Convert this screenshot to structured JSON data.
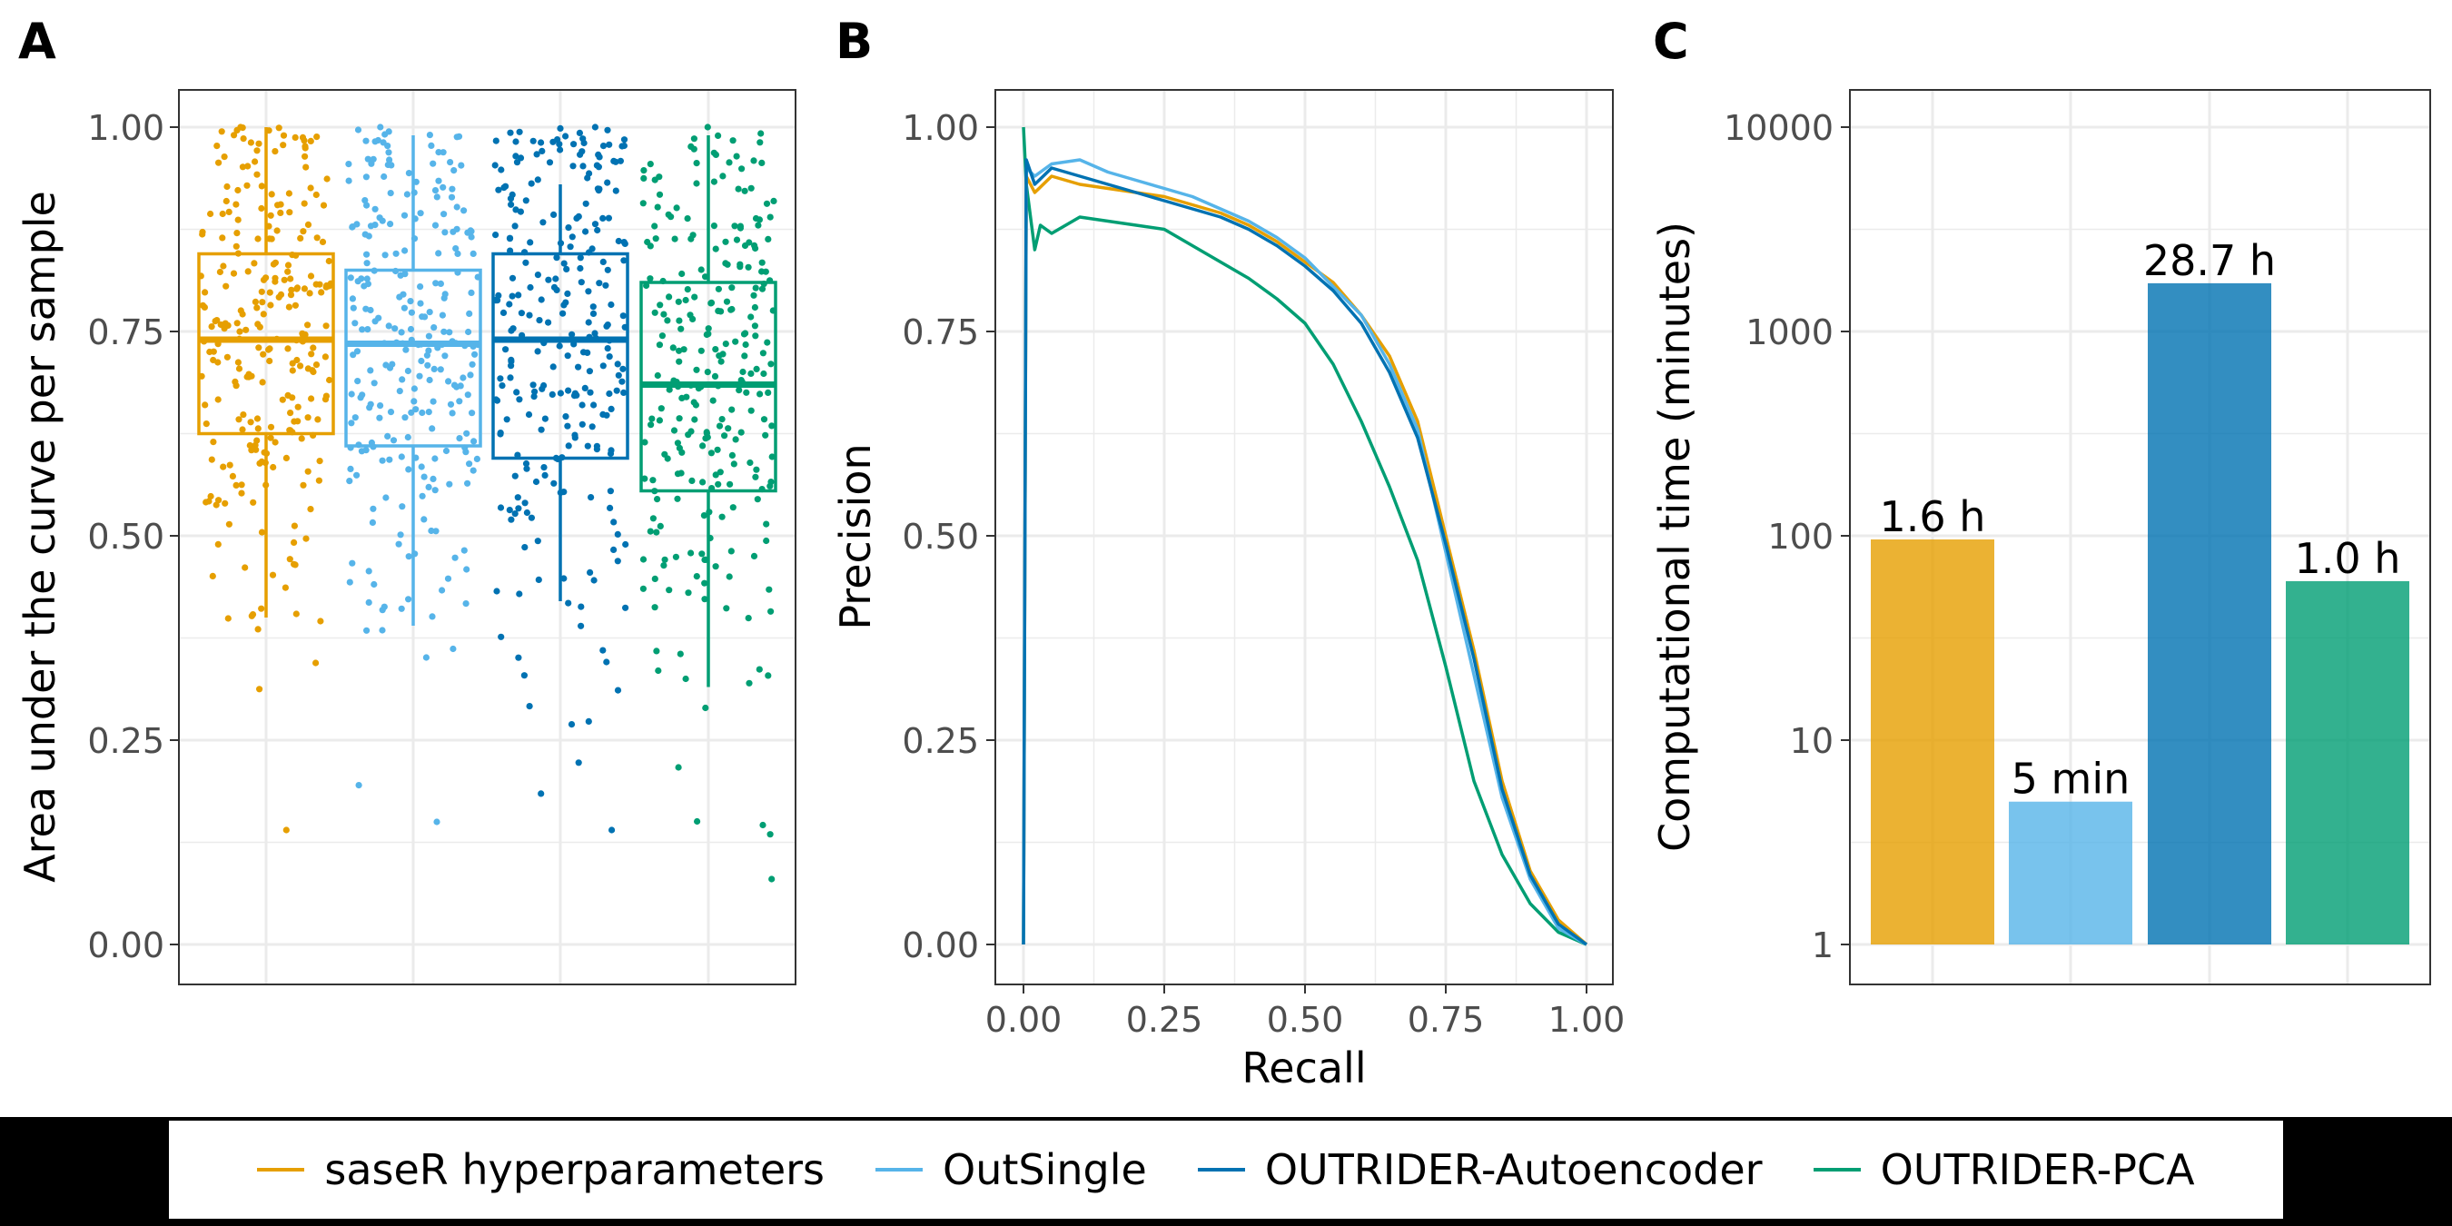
{
  "colors": {
    "saser": "#E69F00",
    "outsingle": "#56B4E9",
    "autoencoder": "#0072B2",
    "pca": "#009E73"
  },
  "legend": {
    "items": [
      {
        "label": "saseR hyperparameters",
        "color": "#E69F00"
      },
      {
        "label": "OutSingle",
        "color": "#56B4E9"
      },
      {
        "label": "OUTRIDER-Autoencoder",
        "color": "#0072B2"
      },
      {
        "label": "OUTRIDER-PCA",
        "color": "#009E73"
      }
    ]
  },
  "chart_data": [
    {
      "panel": "A",
      "type": "box",
      "ylabel": "Area under the curve per sample",
      "xlabel": "",
      "ylim": [
        0,
        1
      ],
      "yticks": [
        "0.00",
        "0.25",
        "0.50",
        "0.75",
        "1.00"
      ],
      "grid": true,
      "series": [
        {
          "name": "saseR hyperparameters",
          "color": "#E69F00",
          "median": 0.74,
          "q1": 0.625,
          "q3": 0.845,
          "whisker_low": 0.4,
          "whisker_high": 1.0,
          "point_min": 0.14,
          "point_max": 1.0
        },
        {
          "name": "OutSingle",
          "color": "#56B4E9",
          "median": 0.735,
          "q1": 0.61,
          "q3": 0.825,
          "whisker_low": 0.39,
          "whisker_high": 0.99,
          "point_min": 0.15,
          "point_max": 1.0
        },
        {
          "name": "OUTRIDER-Autoencoder",
          "color": "#0072B2",
          "median": 0.74,
          "q1": 0.595,
          "q3": 0.845,
          "whisker_low": 0.42,
          "whisker_high": 0.93,
          "point_min": 0.14,
          "point_max": 1.0
        },
        {
          "name": "OUTRIDER-PCA",
          "color": "#009E73",
          "median": 0.685,
          "q1": 0.555,
          "q3": 0.81,
          "whisker_low": 0.315,
          "whisker_high": 0.99,
          "point_min": 0.08,
          "point_max": 1.0
        }
      ]
    },
    {
      "panel": "B",
      "type": "line",
      "xlabel": "Recall",
      "ylabel": "Precision",
      "xlim": [
        0,
        1
      ],
      "ylim": [
        0,
        1
      ],
      "xticks": [
        "0.00",
        "0.25",
        "0.50",
        "0.75",
        "1.00"
      ],
      "yticks": [
        "0.00",
        "0.25",
        "0.50",
        "0.75",
        "1.00"
      ],
      "grid": true,
      "series": [
        {
          "name": "saseR hyperparameters",
          "color": "#E69F00",
          "x": [
            0.0,
            0.005,
            0.02,
            0.05,
            0.1,
            0.15,
            0.2,
            0.25,
            0.3,
            0.35,
            0.4,
            0.45,
            0.5,
            0.55,
            0.6,
            0.65,
            0.7,
            0.75,
            0.8,
            0.85,
            0.9,
            0.95,
            1.0
          ],
          "y": [
            0.0,
            0.94,
            0.92,
            0.94,
            0.93,
            0.925,
            0.92,
            0.915,
            0.905,
            0.895,
            0.88,
            0.86,
            0.835,
            0.81,
            0.77,
            0.72,
            0.64,
            0.5,
            0.36,
            0.2,
            0.09,
            0.03,
            0.0
          ]
        },
        {
          "name": "OutSingle",
          "color": "#56B4E9",
          "x": [
            0.0,
            0.005,
            0.02,
            0.05,
            0.1,
            0.15,
            0.2,
            0.25,
            0.3,
            0.35,
            0.4,
            0.45,
            0.5,
            0.55,
            0.6,
            0.65,
            0.7,
            0.75,
            0.8,
            0.85,
            0.9,
            0.95,
            1.0
          ],
          "y": [
            0.0,
            0.95,
            0.94,
            0.955,
            0.96,
            0.945,
            0.935,
            0.925,
            0.915,
            0.9,
            0.885,
            0.865,
            0.84,
            0.805,
            0.77,
            0.71,
            0.63,
            0.48,
            0.33,
            0.18,
            0.08,
            0.02,
            0.0
          ]
        },
        {
          "name": "OUTRIDER-Autoencoder",
          "color": "#0072B2",
          "x": [
            0.0,
            0.005,
            0.02,
            0.05,
            0.1,
            0.15,
            0.2,
            0.25,
            0.3,
            0.35,
            0.4,
            0.45,
            0.5,
            0.55,
            0.6,
            0.65,
            0.7,
            0.75,
            0.8,
            0.85,
            0.9,
            0.95,
            1.0
          ],
          "y": [
            0.0,
            0.96,
            0.93,
            0.95,
            0.94,
            0.93,
            0.92,
            0.91,
            0.9,
            0.89,
            0.875,
            0.855,
            0.83,
            0.8,
            0.76,
            0.7,
            0.62,
            0.49,
            0.35,
            0.19,
            0.085,
            0.025,
            0.0
          ]
        },
        {
          "name": "OUTRIDER-PCA",
          "color": "#009E73",
          "x": [
            0.0,
            0.005,
            0.02,
            0.03,
            0.05,
            0.1,
            0.15,
            0.2,
            0.25,
            0.3,
            0.35,
            0.4,
            0.45,
            0.5,
            0.55,
            0.6,
            0.65,
            0.7,
            0.75,
            0.8,
            0.85,
            0.9,
            0.95,
            1.0
          ],
          "y": [
            1.0,
            0.93,
            0.85,
            0.88,
            0.87,
            0.89,
            0.885,
            0.88,
            0.875,
            0.855,
            0.835,
            0.815,
            0.79,
            0.76,
            0.71,
            0.64,
            0.56,
            0.47,
            0.34,
            0.2,
            0.11,
            0.05,
            0.015,
            0.0
          ]
        }
      ]
    },
    {
      "panel": "C",
      "type": "bar",
      "ylabel": "Computational time (minutes)",
      "xlabel": "",
      "yscale": "log10",
      "ylim": [
        1,
        10000
      ],
      "yticks": [
        "1",
        "10",
        "100",
        "1000",
        "10000"
      ],
      "grid": true,
      "categories": [
        "saseR hyperparameters",
        "OutSingle",
        "OUTRIDER-Autoencoder",
        "OUTRIDER-PCA"
      ],
      "values": [
        96,
        5,
        1722,
        60
      ],
      "labels": [
        "1.6 h",
        "5 min",
        "28.7 h",
        "1.0 h"
      ],
      "colors": [
        "#E69F00",
        "#56B4E9",
        "#0072B2",
        "#009E73"
      ]
    }
  ],
  "panels": {
    "a": {
      "tag": "A"
    },
    "b": {
      "tag": "B"
    },
    "c": {
      "tag": "C"
    }
  }
}
